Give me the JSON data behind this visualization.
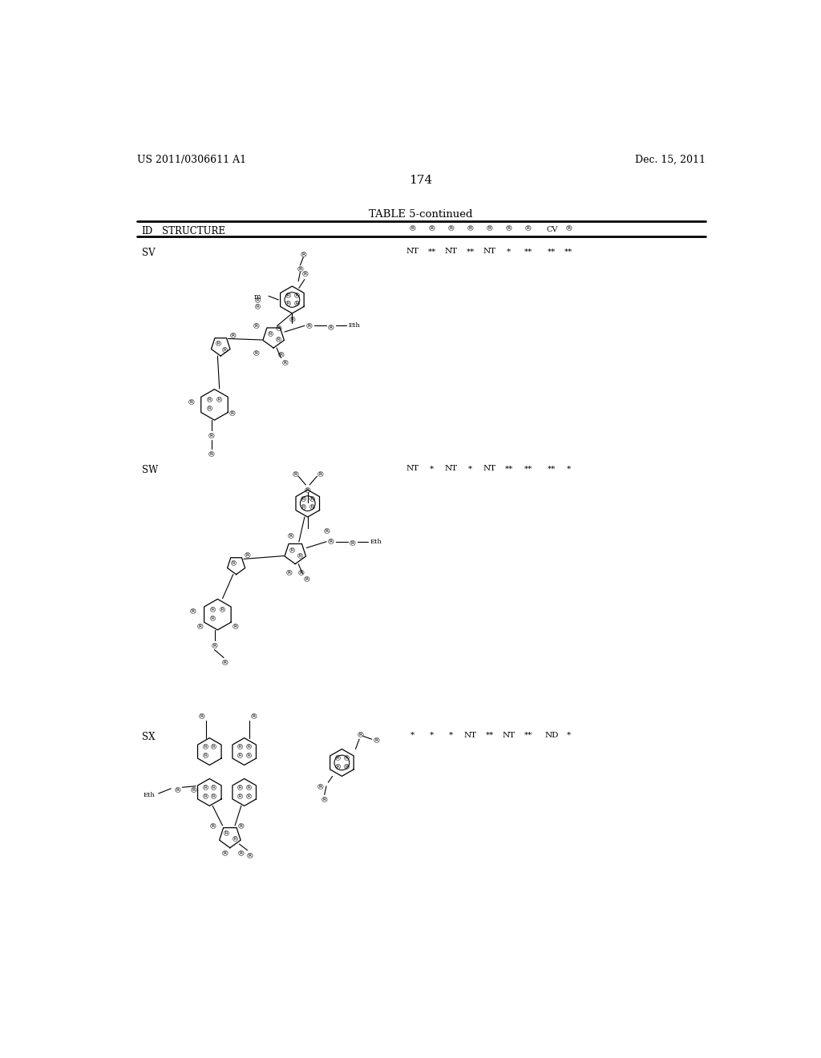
{
  "background_color": "#ffffff",
  "page_header_left": "US 2011/0306611 A1",
  "page_header_right": "Dec. 15, 2011",
  "page_number": "174",
  "table_title": "TABLE 5-continued",
  "sv_data": "NT   **   NT   **   NT    *    **   **   **",
  "sw_data": "NT    *   NT    *   NT   **   **   **    *",
  "sx_data": " *    *    *   NT   **   NT   **   ND    *",
  "col_positions": [
    499,
    530,
    561,
    592,
    623,
    654,
    685,
    723,
    750
  ],
  "col_labels": [
    "®",
    "®",
    "®",
    "®",
    "®",
    "®",
    "®",
    "CV",
    "®"
  ]
}
